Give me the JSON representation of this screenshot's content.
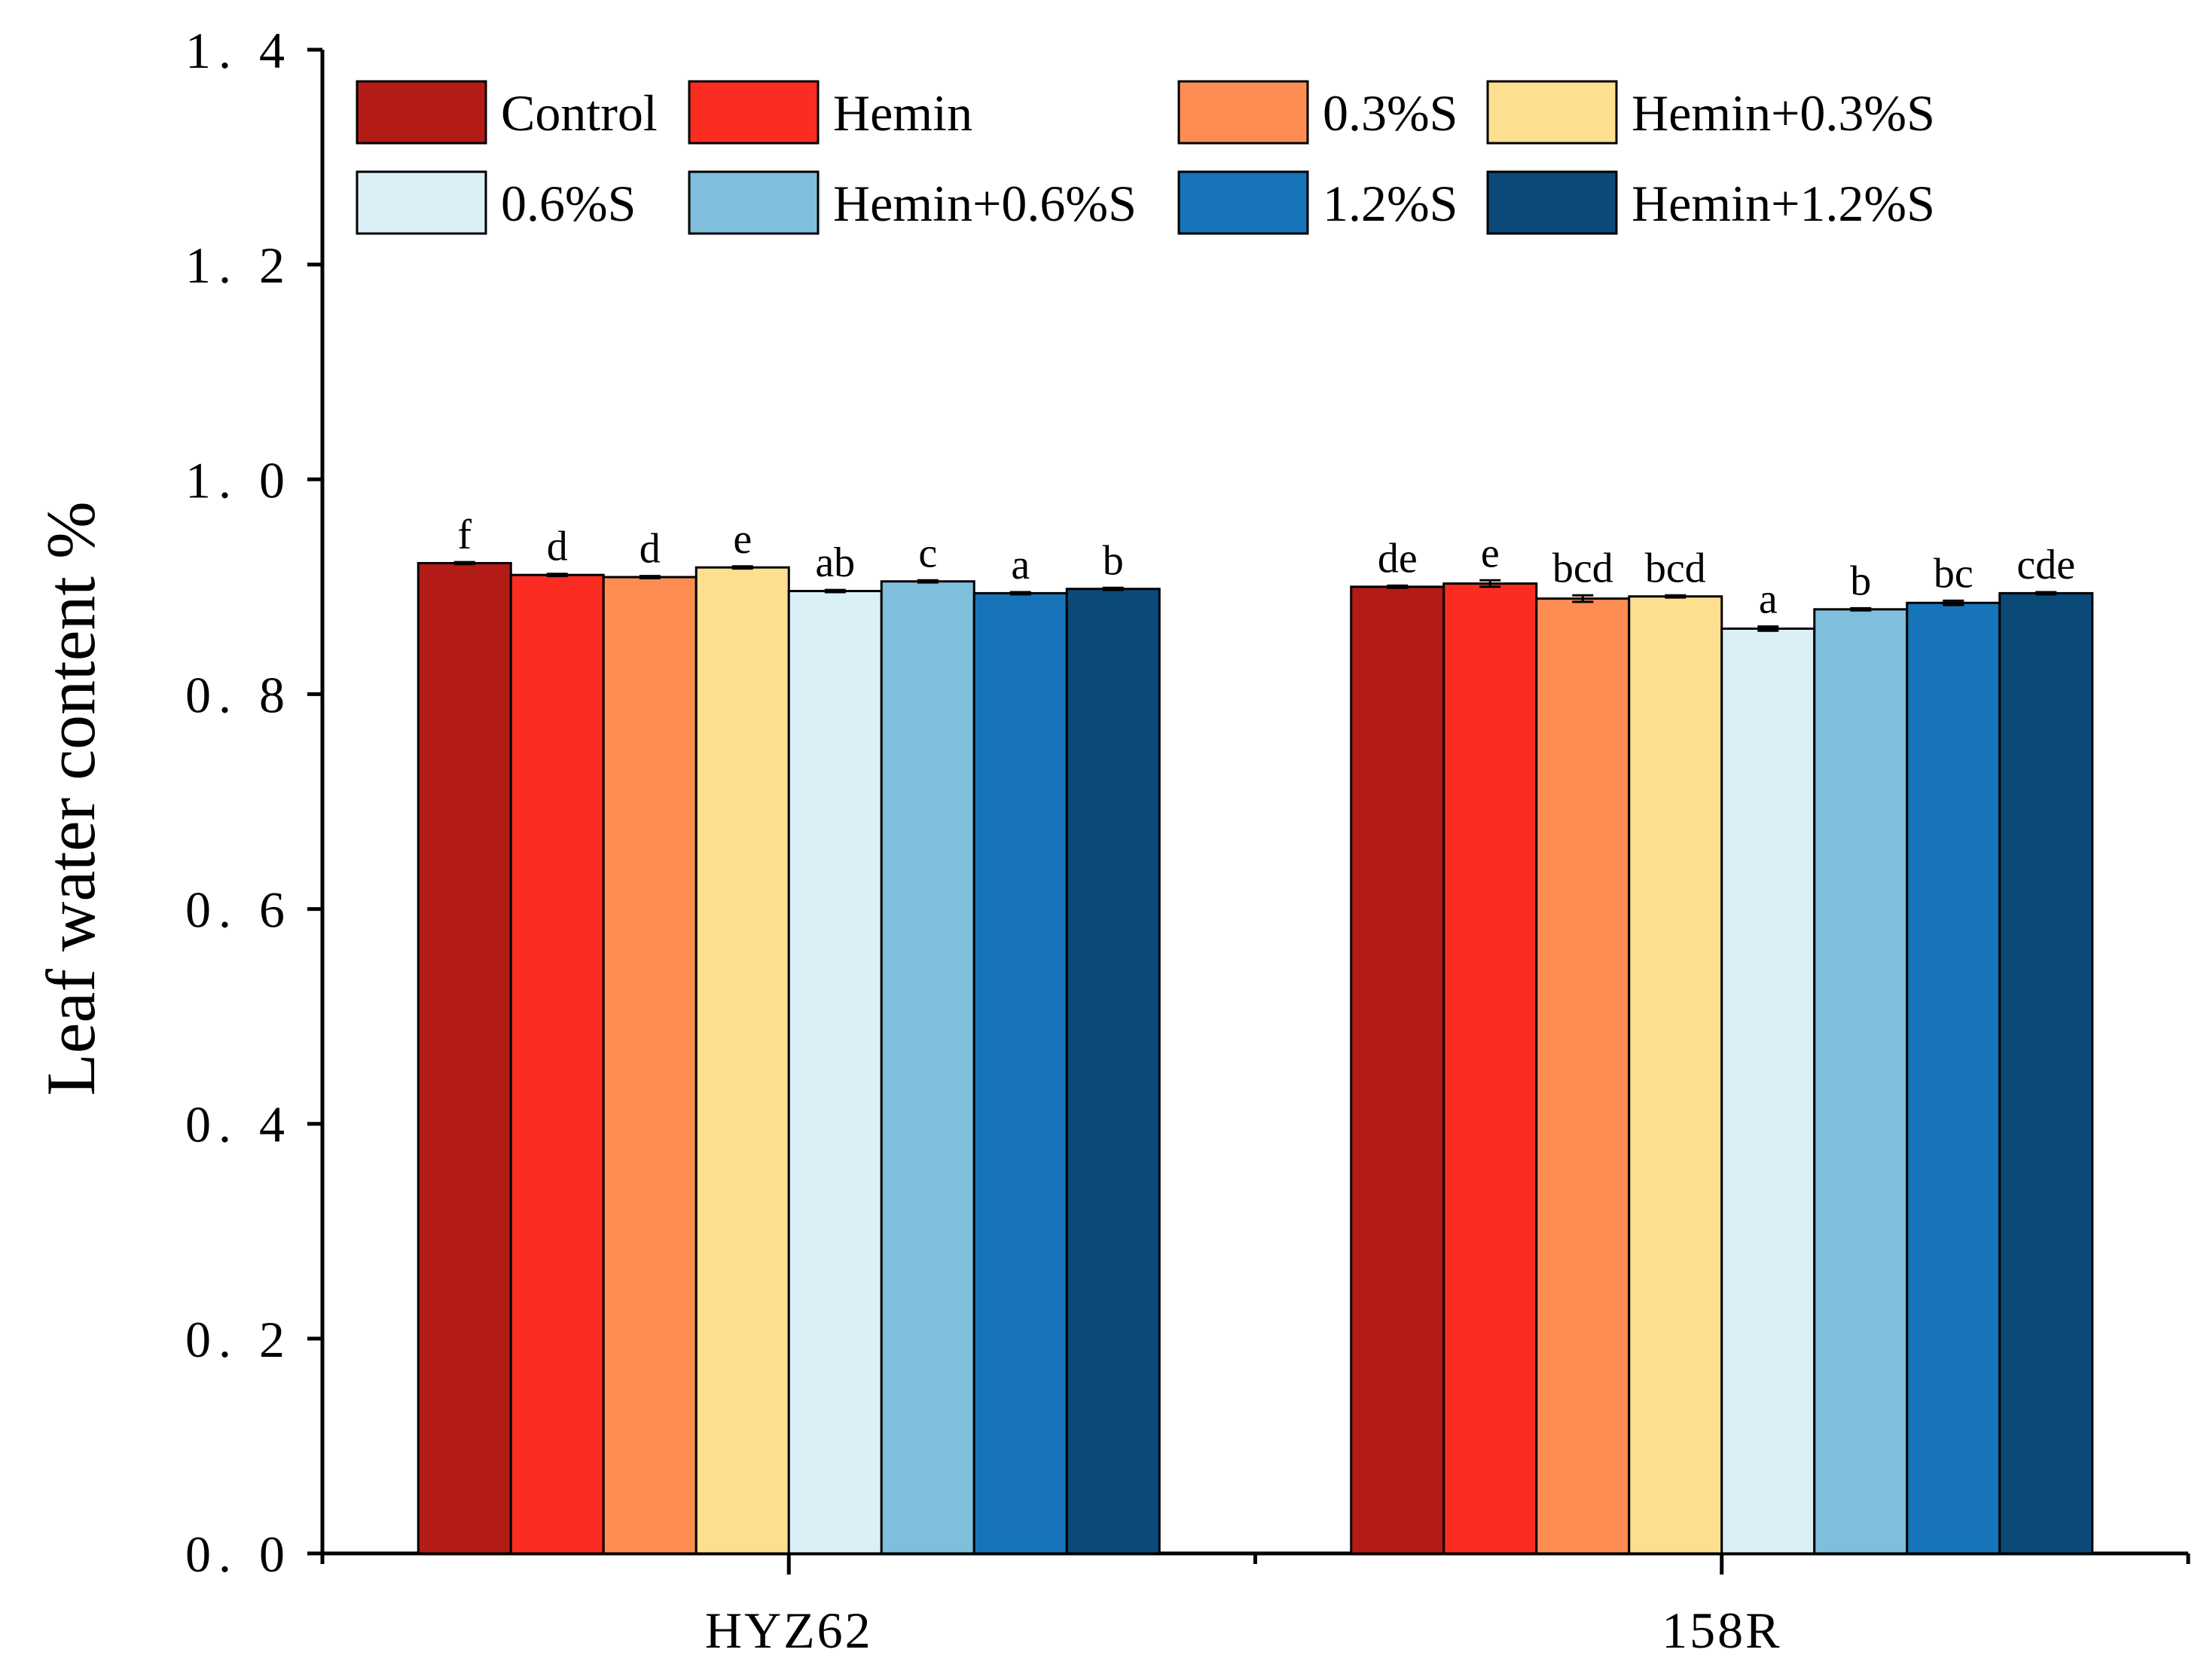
{
  "chart_data": {
    "type": "bar",
    "categories": [
      "HYZ62",
      "158R"
    ],
    "ylabel": "Leaf water content %",
    "xlabel": "",
    "ylim": [
      0,
      1.4
    ],
    "yticks": [
      "0. 0",
      "0. 2",
      "0. 4",
      "0. 6",
      "0. 8",
      "1. 0",
      "1. 2",
      "1. 4"
    ],
    "ytick_values": [
      0,
      0.2,
      0.4,
      0.6,
      0.8,
      1.0,
      1.2,
      1.4
    ],
    "legend_position": "top",
    "grid": false,
    "series": [
      {
        "name": "Control",
        "color": "#B31B17",
        "values": [
          0.922,
          0.9
        ],
        "errors": [
          0.001,
          0.001
        ],
        "labels": [
          "f",
          "de"
        ]
      },
      {
        "name": "Hemin",
        "color": "#FB2D22",
        "values": [
          0.911,
          0.903
        ],
        "errors": [
          0.001,
          0.003
        ],
        "labels": [
          "d",
          "e"
        ]
      },
      {
        "name": "0.3%S",
        "color": "#FE8D54",
        "values": [
          0.909,
          0.889
        ],
        "errors": [
          0.001,
          0.003
        ],
        "labels": [
          "d",
          "bcd"
        ]
      },
      {
        "name": "Hemin+0.3%S",
        "color": "#FEDF8F",
        "values": [
          0.918,
          0.891
        ],
        "errors": [
          0.001,
          0.001
        ],
        "labels": [
          "e",
          "bcd"
        ]
      },
      {
        "name": "0.6%S",
        "color": "#DAF0F6",
        "values": [
          0.896,
          0.861
        ],
        "errors": [
          0.001,
          0.002
        ],
        "labels": [
          "ab",
          "a"
        ]
      },
      {
        "name": "Hemin+0.6%S",
        "color": "#7FBFDC",
        "values": [
          0.905,
          0.879
        ],
        "errors": [
          0.001,
          0.001
        ],
        "labels": [
          "c",
          "b"
        ]
      },
      {
        "name": "1.2%S",
        "color": "#1774B9",
        "values": [
          0.894,
          0.885
        ],
        "errors": [
          0.001,
          0.002
        ],
        "labels": [
          "a",
          "bc"
        ]
      },
      {
        "name": "Hemin+1.2%S",
        "color": "#0B4A78",
        "values": [
          0.898,
          0.894
        ],
        "errors": [
          0.001,
          0.001
        ],
        "labels": [
          "b",
          "cde"
        ]
      }
    ]
  }
}
